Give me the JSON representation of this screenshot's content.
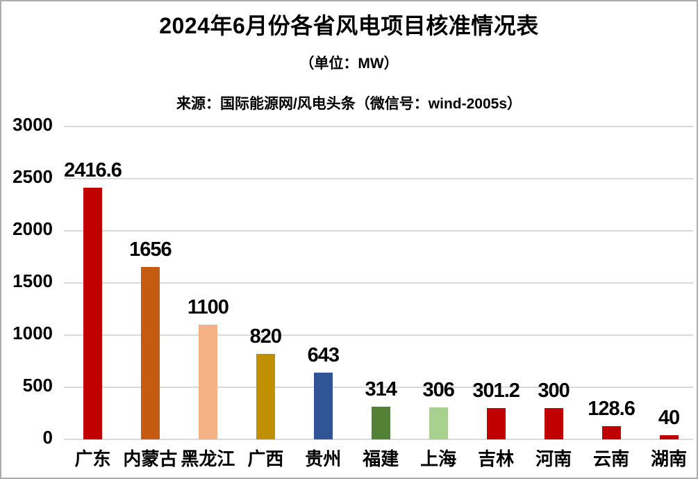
{
  "page": {
    "background_color": "#ffffff",
    "border_color": "#ababab",
    "text_color": "#000000"
  },
  "header": {
    "title": "2024年6月份各省风电项目核准情况表",
    "unit_label": "（单位：MW）",
    "source_label": "来源：国际能源网/风电头条（微信号：wind-2005s）"
  },
  "chart_data": {
    "type": "bar",
    "title": "2024年6月份各省风电项目核准情况表",
    "subtitle": "（单位：MW）",
    "source": "来源：国际能源网/风电头条（微信号：wind-2005s）",
    "unit": "MW",
    "categories": [
      "广东",
      "内蒙古",
      "黑龙江",
      "广西",
      "贵州",
      "福建",
      "上海",
      "吉林",
      "河南",
      "云南",
      "湖南"
    ],
    "values": [
      2416.6,
      1656,
      1100,
      820,
      643,
      314,
      306,
      301.2,
      300,
      128.6,
      40
    ],
    "value_labels": [
      "2416.6",
      "1656",
      "1100",
      "820",
      "643",
      "314",
      "306",
      "301.2",
      "300",
      "128.6",
      "40"
    ],
    "bar_colors": [
      "#c00000",
      "#c55a11",
      "#f4b183",
      "#bf9000",
      "#2f5597",
      "#538135",
      "#a9d18e",
      "#c00000",
      "#c00000",
      "#c00000",
      "#c00000"
    ],
    "xlabel": "",
    "ylabel": "",
    "ylim": [
      0,
      3000
    ],
    "yticks": [
      0,
      500,
      1000,
      1500,
      2000,
      2500,
      3000
    ],
    "grid": true,
    "gridline_color": "#d9d9d9",
    "legend": "none",
    "value_labels_shown": true
  }
}
